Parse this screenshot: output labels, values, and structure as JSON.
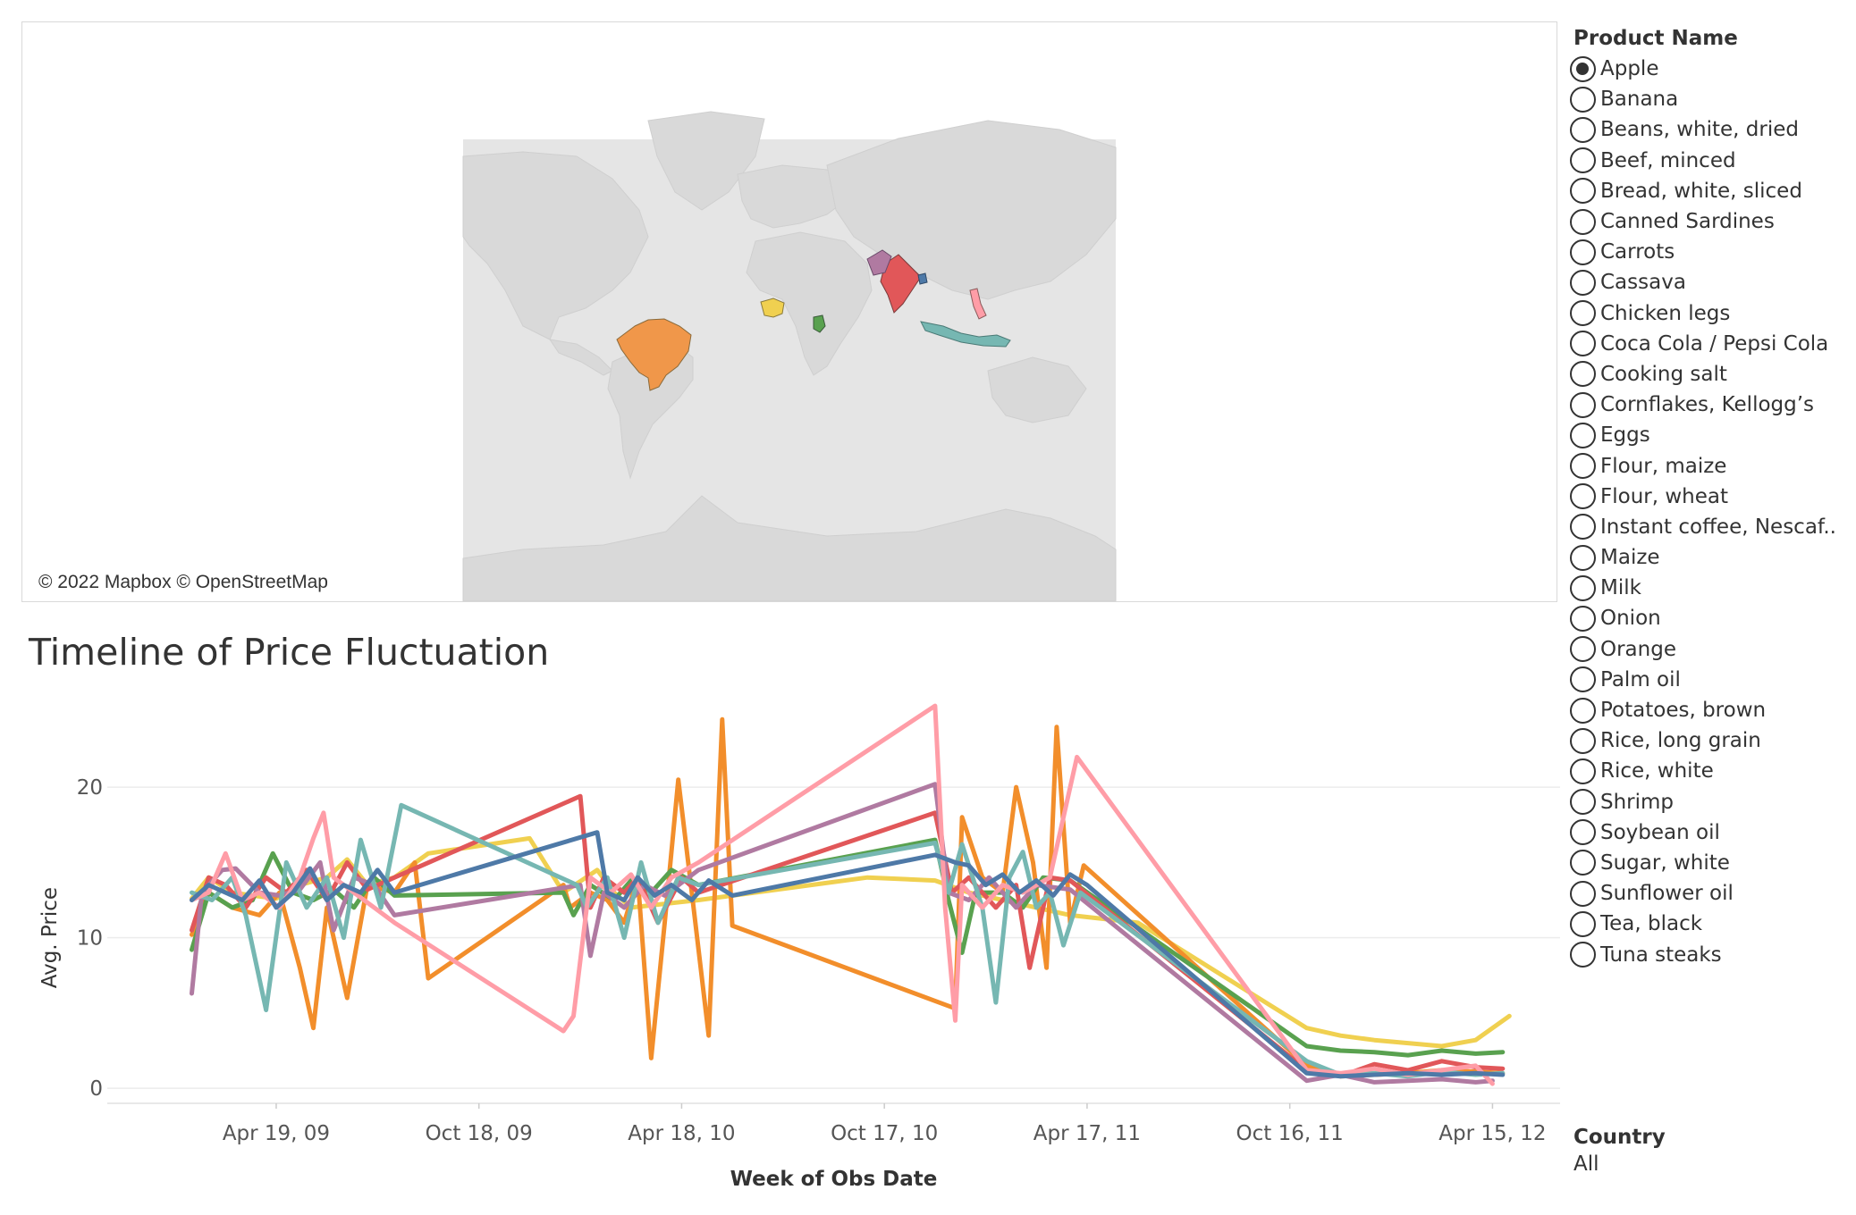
{
  "map": {
    "attribution": "© 2022 Mapbox © OpenStreetMap",
    "highlighted_countries": [
      {
        "name": "Brazil",
        "color": "#f0974a"
      },
      {
        "name": "Nigeria",
        "color": "#f0d050"
      },
      {
        "name": "Kenya",
        "color": "#59a14f"
      },
      {
        "name": "India",
        "color": "#e15759"
      },
      {
        "name": "Pakistan",
        "color": "#b07aa1"
      },
      {
        "name": "Bangladesh",
        "color": "#4e79a7"
      },
      {
        "name": "Indonesia",
        "color": "#76b7b2"
      },
      {
        "name": "Philippines",
        "color": "#ff9da7"
      }
    ]
  },
  "timeline": {
    "title": "Timeline of Price Fluctuation"
  },
  "chart_data": {
    "type": "line",
    "xlabel": "Week of Obs Date",
    "ylabel": "Avg. Price",
    "x_ticks": [
      "Apr 19, 09",
      "Oct 18, 09",
      "Apr 18, 10",
      "Oct 17, 10",
      "Apr 17, 11",
      "Oct 16, 11",
      "Apr 15, 12"
    ],
    "y_ticks": [
      0,
      10,
      20
    ],
    "ylim": [
      -1,
      26
    ],
    "grid": "horizontal",
    "series": [
      {
        "color": "#f0d050",
        "points": [
          [
            0,
            12.6
          ],
          [
            0.5,
            14
          ],
          [
            1.2,
            13
          ],
          [
            1.8,
            12.8
          ],
          [
            2.5,
            12.6
          ],
          [
            3.2,
            13.5
          ],
          [
            4,
            14
          ],
          [
            4.6,
            15.2
          ],
          [
            5.2,
            13.5
          ],
          [
            6,
            14
          ],
          [
            7,
            15.6
          ],
          [
            10,
            16.6
          ],
          [
            11,
            13
          ],
          [
            12,
            14.5
          ],
          [
            12.5,
            13
          ],
          [
            13,
            12
          ],
          [
            15,
            12.5
          ],
          [
            20,
            14
          ],
          [
            22,
            13.8
          ],
          [
            23,
            13
          ],
          [
            24,
            12.5
          ],
          [
            26,
            11.5
          ],
          [
            28,
            11
          ],
          [
            33,
            4
          ],
          [
            34,
            3.5
          ],
          [
            35,
            3.2
          ],
          [
            36,
            3
          ],
          [
            37,
            2.8
          ],
          [
            38,
            3.2
          ],
          [
            39,
            4.8
          ]
        ]
      },
      {
        "color": "#f28e2b",
        "points": [
          [
            0,
            10.2
          ],
          [
            0.5,
            13
          ],
          [
            1.2,
            12
          ],
          [
            2,
            11.5
          ],
          [
            2.6,
            13
          ],
          [
            3.2,
            8
          ],
          [
            3.6,
            4
          ],
          [
            4,
            12
          ],
          [
            4.6,
            6
          ],
          [
            5.2,
            13.5
          ],
          [
            6,
            13
          ],
          [
            6.6,
            15
          ],
          [
            7,
            7.3
          ],
          [
            11,
            13.5
          ],
          [
            11.2,
            12
          ],
          [
            11.8,
            13
          ],
          [
            12.3,
            12.5
          ],
          [
            12.8,
            11
          ],
          [
            13.2,
            14
          ],
          [
            13.6,
            2
          ],
          [
            14,
            11
          ],
          [
            14.4,
            20.5
          ],
          [
            14.8,
            13
          ],
          [
            15.3,
            3.5
          ],
          [
            15.7,
            24.5
          ],
          [
            16,
            10.8
          ],
          [
            22.6,
            5.3
          ],
          [
            22.8,
            18
          ],
          [
            23.4,
            14
          ],
          [
            24,
            13
          ],
          [
            24.4,
            20
          ],
          [
            24.9,
            15
          ],
          [
            25.3,
            8
          ],
          [
            25.6,
            24
          ],
          [
            26,
            11
          ],
          [
            26.4,
            14.8
          ],
          [
            33,
            1.5
          ],
          [
            34,
            0.8
          ],
          [
            35,
            0.9
          ],
          [
            36,
            1
          ],
          [
            37,
            1.2
          ],
          [
            38,
            1.1
          ],
          [
            38.8,
            1
          ]
        ]
      },
      {
        "color": "#59a14f",
        "points": [
          [
            0,
            9.2
          ],
          [
            0.5,
            13
          ],
          [
            1.2,
            12
          ],
          [
            1.8,
            12.5
          ],
          [
            2.4,
            15.6
          ],
          [
            3,
            13
          ],
          [
            3.6,
            12.5
          ],
          [
            4.2,
            13.2
          ],
          [
            4.8,
            12
          ],
          [
            5.4,
            14
          ],
          [
            6,
            12.8
          ],
          [
            11,
            13
          ],
          [
            11.3,
            11.5
          ],
          [
            11.8,
            13.5
          ],
          [
            12.5,
            12.5
          ],
          [
            13,
            13.8
          ],
          [
            13.6,
            13
          ],
          [
            14.2,
            14.5
          ],
          [
            15,
            13.5
          ],
          [
            22,
            16.5
          ],
          [
            22.4,
            12.5
          ],
          [
            22.8,
            9
          ],
          [
            23.2,
            13
          ],
          [
            24,
            13
          ],
          [
            24.6,
            12
          ],
          [
            25.2,
            14
          ],
          [
            26,
            13.8
          ],
          [
            33,
            2.8
          ],
          [
            34,
            2.5
          ],
          [
            35,
            2.4
          ],
          [
            36,
            2.2
          ],
          [
            37,
            2.5
          ],
          [
            38,
            2.3
          ],
          [
            38.8,
            2.4
          ]
        ]
      },
      {
        "color": "#e15759",
        "points": [
          [
            0,
            10.5
          ],
          [
            0.5,
            14
          ],
          [
            1,
            13.5
          ],
          [
            1.6,
            12
          ],
          [
            2.2,
            14
          ],
          [
            2.8,
            13
          ],
          [
            3.4,
            14.5
          ],
          [
            4,
            12.5
          ],
          [
            4.6,
            15
          ],
          [
            5.2,
            13.2
          ],
          [
            6,
            14
          ],
          [
            11.5,
            19.4
          ],
          [
            11.8,
            12
          ],
          [
            12.2,
            14
          ],
          [
            12.8,
            13
          ],
          [
            13.2,
            14
          ],
          [
            13.8,
            11
          ],
          [
            14.5,
            14
          ],
          [
            15,
            13
          ],
          [
            22,
            18.3
          ],
          [
            22.5,
            13
          ],
          [
            23,
            14
          ],
          [
            23.8,
            12
          ],
          [
            24.4,
            13.5
          ],
          [
            24.8,
            8
          ],
          [
            25.4,
            14
          ],
          [
            26,
            13.8
          ],
          [
            33,
            1.2
          ],
          [
            34,
            0.8
          ],
          [
            35,
            1.6
          ],
          [
            36,
            1.2
          ],
          [
            37,
            1.8
          ],
          [
            38,
            1.4
          ],
          [
            38.8,
            1.3
          ]
        ]
      },
      {
        "color": "#b07aa1",
        "points": [
          [
            0,
            6.3
          ],
          [
            0.3,
            13
          ],
          [
            0.9,
            14.5
          ],
          [
            1.3,
            14.6
          ],
          [
            2,
            13
          ],
          [
            2.6,
            12.8
          ],
          [
            3.2,
            13.2
          ],
          [
            3.8,
            15
          ],
          [
            4.2,
            10.5
          ],
          [
            4.8,
            14
          ],
          [
            5.4,
            13.5
          ],
          [
            6,
            11.5
          ],
          [
            11.5,
            13.5
          ],
          [
            11.8,
            8.8
          ],
          [
            12.2,
            13
          ],
          [
            12.8,
            12
          ],
          [
            13.4,
            13.5
          ],
          [
            14,
            12.8
          ],
          [
            15,
            14.5
          ],
          [
            22,
            20.2
          ],
          [
            22.4,
            13
          ],
          [
            23,
            12.5
          ],
          [
            23.6,
            14
          ],
          [
            24.4,
            12
          ],
          [
            25,
            13.5
          ],
          [
            26,
            13.2
          ],
          [
            33,
            0.5
          ],
          [
            34,
            0.9
          ],
          [
            35,
            0.4
          ],
          [
            36,
            0.5
          ],
          [
            37,
            0.6
          ],
          [
            38,
            0.4
          ],
          [
            38.5,
            0.5
          ]
        ]
      },
      {
        "color": "#76b7b2",
        "points": [
          [
            0,
            13
          ],
          [
            0.6,
            12.5
          ],
          [
            1.2,
            14
          ],
          [
            1.6,
            11.5
          ],
          [
            2.2,
            5.2
          ],
          [
            2.8,
            15
          ],
          [
            3.4,
            12
          ],
          [
            4,
            14
          ],
          [
            4.5,
            10
          ],
          [
            5,
            16.5
          ],
          [
            5.6,
            12
          ],
          [
            6.2,
            18.8
          ],
          [
            11.4,
            13.5
          ],
          [
            11.7,
            12
          ],
          [
            12.3,
            14
          ],
          [
            12.8,
            10
          ],
          [
            13.3,
            15
          ],
          [
            13.8,
            11
          ],
          [
            14.4,
            14
          ],
          [
            15,
            13.5
          ],
          [
            22,
            16.3
          ],
          [
            22.4,
            13
          ],
          [
            22.8,
            16.2
          ],
          [
            23.4,
            12
          ],
          [
            23.8,
            5.7
          ],
          [
            24.2,
            14
          ],
          [
            24.6,
            15.7
          ],
          [
            25,
            12
          ],
          [
            25.4,
            13
          ],
          [
            25.8,
            9.5
          ],
          [
            26.3,
            13
          ],
          [
            33,
            1.8
          ],
          [
            34,
            0.9
          ],
          [
            35,
            1
          ],
          [
            36,
            0.8
          ],
          [
            37,
            1.1
          ],
          [
            38,
            0.9
          ],
          [
            38.8,
            1
          ]
        ]
      },
      {
        "color": "#ff9da7",
        "points": [
          [
            0,
            12.5
          ],
          [
            0.5,
            13
          ],
          [
            1,
            15.6
          ],
          [
            1.5,
            12.5
          ],
          [
            2,
            13
          ],
          [
            2.6,
            12
          ],
          [
            3.2,
            14
          ],
          [
            3.6,
            16.6
          ],
          [
            3.9,
            18.3
          ],
          [
            4.2,
            14
          ],
          [
            4.8,
            13
          ],
          [
            5.4,
            12
          ],
          [
            6,
            11
          ],
          [
            11,
            3.8
          ],
          [
            11.3,
            4.8
          ],
          [
            11.8,
            14
          ],
          [
            12.4,
            13
          ],
          [
            13,
            14.2
          ],
          [
            13.6,
            12
          ],
          [
            14.2,
            14
          ],
          [
            15,
            15
          ],
          [
            22,
            25.4
          ],
          [
            22.3,
            12
          ],
          [
            22.6,
            4.5
          ],
          [
            22.8,
            13.5
          ],
          [
            23.4,
            12
          ],
          [
            24,
            13.5
          ],
          [
            24.6,
            13
          ],
          [
            25.4,
            14
          ],
          [
            26.2,
            22
          ],
          [
            33,
            1.2
          ],
          [
            34,
            1
          ],
          [
            35,
            1.3
          ],
          [
            36,
            0.9
          ],
          [
            37,
            1.2
          ],
          [
            38,
            1.5
          ],
          [
            38.5,
            0.3
          ]
        ]
      },
      {
        "color": "#4e79a7",
        "points": [
          [
            0,
            12.5
          ],
          [
            0.5,
            13.5
          ],
          [
            1,
            13
          ],
          [
            1.5,
            12.5
          ],
          [
            2,
            13.8
          ],
          [
            2.5,
            12
          ],
          [
            3,
            13
          ],
          [
            3.5,
            14.6
          ],
          [
            4,
            12.5
          ],
          [
            4.5,
            13.5
          ],
          [
            5,
            13
          ],
          [
            5.5,
            14.5
          ],
          [
            6,
            13
          ],
          [
            12,
            17
          ],
          [
            12.3,
            13
          ],
          [
            12.8,
            12.5
          ],
          [
            13.2,
            14
          ],
          [
            13.7,
            12.8
          ],
          [
            14.2,
            13.5
          ],
          [
            14.8,
            12.5
          ],
          [
            15.3,
            13.8
          ],
          [
            16,
            12.8
          ],
          [
            22,
            15.5
          ],
          [
            22.6,
            15
          ],
          [
            23,
            14.8
          ],
          [
            23.5,
            13.5
          ],
          [
            24,
            14.2
          ],
          [
            24.5,
            13
          ],
          [
            25,
            13.8
          ],
          [
            25.5,
            12.8
          ],
          [
            26,
            14.2
          ],
          [
            26.5,
            13.5
          ],
          [
            33,
            1
          ],
          [
            34,
            0.8
          ],
          [
            35,
            0.9
          ],
          [
            36,
            1
          ],
          [
            37,
            0.9
          ],
          [
            38,
            1
          ],
          [
            38.8,
            0.9
          ]
        ]
      }
    ]
  },
  "product_filter": {
    "title": "Product Name",
    "selected_index": 0,
    "options": [
      "Apple",
      "Banana",
      "Beans, white, dried",
      "Beef, minced",
      "Bread, white, sliced",
      "Canned Sardines",
      "Carrots",
      "Cassava",
      "Chicken legs",
      "Coca Cola / Pepsi Cola",
      "Cooking salt",
      "Cornflakes, Kellogg’s",
      "Eggs",
      "Flour, maize",
      "Flour, wheat",
      "Instant coffee, Nescaf..",
      "Maize",
      "Milk",
      "Onion",
      "Orange",
      "Palm oil",
      "Potatoes, brown",
      "Rice, long grain",
      "Rice, white",
      "Shrimp",
      "Soybean oil",
      "Sugar, white",
      "Sunflower oil",
      "Tea, black",
      "Tuna steaks"
    ]
  },
  "country_filter": {
    "title": "Country",
    "value": "All"
  }
}
